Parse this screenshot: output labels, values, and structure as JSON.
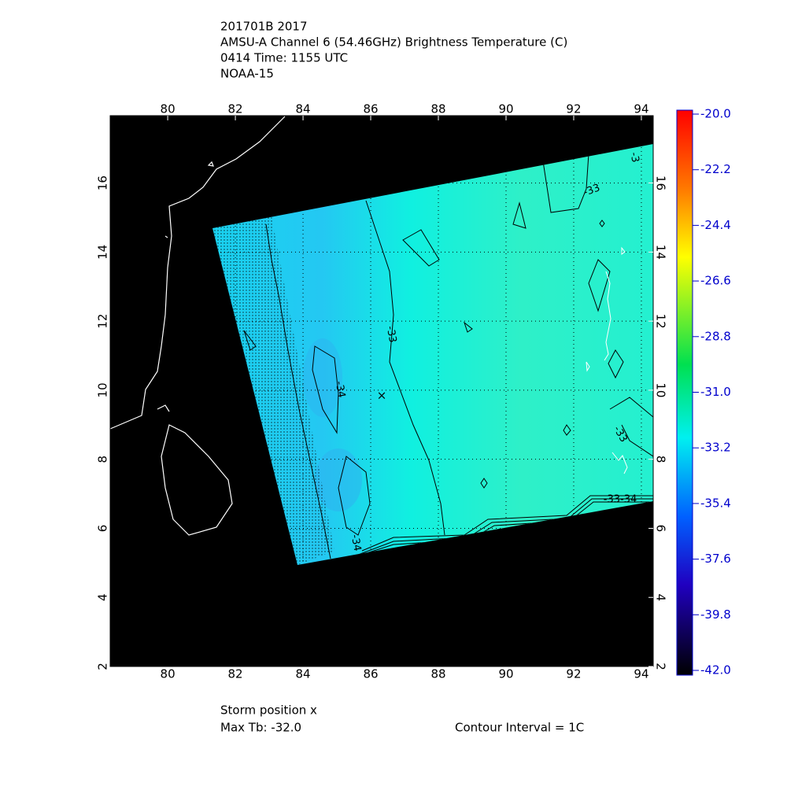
{
  "header": {
    "lines": [
      "201701B 2017",
      "AMSU-A Channel 6 (54.46GHz) Brightness Temperature (C)",
      "0414 Time: 1155 UTC",
      "NOAA-15"
    ]
  },
  "map": {
    "lon_range": [
      78.3,
      94.35
    ],
    "lat_range": [
      2,
      17.95
    ],
    "lon_ticks": [
      80,
      82,
      84,
      86,
      88,
      90,
      92,
      94
    ],
    "lat_ticks": [
      2,
      4,
      6,
      8,
      10,
      12,
      14,
      16
    ],
    "contour_labels": [
      "-33",
      "-34",
      "-34",
      "-33",
      "-33",
      "-3",
      "-33-34"
    ]
  },
  "colorbar": {
    "range": [
      -42,
      -20
    ],
    "ticks": [
      {
        "value": -20,
        "label": "-20.0"
      },
      {
        "value": -22.2,
        "label": "-22.2"
      },
      {
        "value": -24.4,
        "label": "-24.4"
      },
      {
        "value": -26.6,
        "label": "-26.6"
      },
      {
        "value": -28.8,
        "label": "-28.8"
      },
      {
        "value": -31,
        "label": "-31.0"
      },
      {
        "value": -33.2,
        "label": "-33.2"
      },
      {
        "value": -35.4,
        "label": "-35.4"
      },
      {
        "value": -37.6,
        "label": "-37.6"
      },
      {
        "value": -39.8,
        "label": "-39.8"
      },
      {
        "value": -42,
        "label": "-42.0"
      }
    ]
  },
  "footer": {
    "storm": "Storm position x",
    "max_tb": "Max Tb: -32.0",
    "interval": "Contour Interval = 1C"
  }
}
